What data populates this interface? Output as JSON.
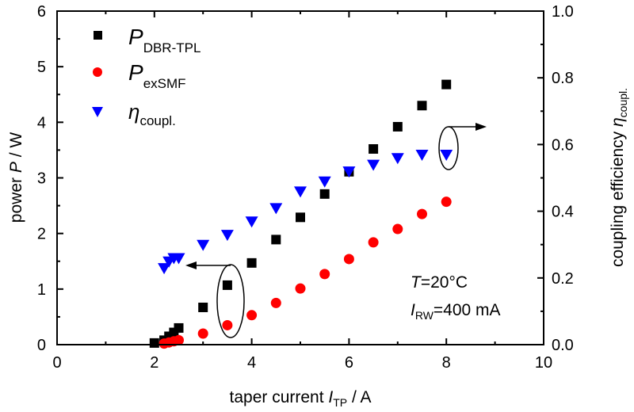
{
  "chart_data": {
    "type": "scatter",
    "xlabel": {
      "text": "taper current ",
      "italic": "I",
      "sub": "TP",
      "unit": " / A"
    },
    "ylabel": {
      "text": "power ",
      "italic": "P",
      "unit": " / W"
    },
    "y2label": {
      "text": "coupling efficiency ",
      "italic": "η",
      "sub": "coupl."
    },
    "xlim": [
      0,
      10
    ],
    "ylim": [
      0,
      6
    ],
    "y2lim": [
      0,
      1.0
    ],
    "xticks": [
      "0",
      "2",
      "4",
      "6",
      "8",
      "10"
    ],
    "yticks": [
      "0",
      "1",
      "2",
      "3",
      "4",
      "5",
      "6"
    ],
    "y2ticks": [
      "0.0",
      "0.2",
      "0.4",
      "0.6",
      "0.8",
      "1.0"
    ],
    "grid": false,
    "legend_placement": "top-left",
    "series": [
      {
        "name": "P",
        "sub": "DBR-TPL",
        "marker": "square",
        "color": "#000000",
        "axis": "left",
        "x": [
          2.0,
          2.2,
          2.3,
          2.4,
          2.5,
          3.0,
          3.5,
          4.0,
          4.5,
          5.0,
          5.5,
          6.0,
          6.5,
          7.0,
          7.5,
          8.0
        ],
        "y": [
          0.03,
          0.08,
          0.15,
          0.22,
          0.3,
          0.67,
          1.07,
          1.47,
          1.89,
          2.29,
          2.71,
          3.11,
          3.52,
          3.92,
          4.3,
          4.68
        ]
      },
      {
        "name": "P",
        "sub": "exSMF",
        "marker": "circle",
        "color": "#ff0000",
        "axis": "left",
        "x": [
          2.2,
          2.3,
          2.4,
          2.5,
          3.0,
          3.5,
          4.0,
          4.5,
          5.0,
          5.5,
          6.0,
          6.5,
          7.0,
          7.5,
          8.0
        ],
        "y": [
          0.02,
          0.04,
          0.06,
          0.08,
          0.2,
          0.35,
          0.53,
          0.75,
          1.01,
          1.27,
          1.54,
          1.84,
          2.08,
          2.35,
          2.57
        ]
      },
      {
        "name": "η",
        "sub": "coupl.",
        "marker": "triangle-down",
        "color": "#0000ff",
        "axis": "right",
        "x": [
          2.2,
          2.3,
          2.4,
          2.5,
          3.0,
          3.5,
          4.0,
          4.5,
          5.0,
          5.5,
          6.0,
          6.5,
          7.0,
          7.5,
          8.0
        ],
        "y": [
          0.23,
          0.25,
          0.26,
          0.26,
          0.3,
          0.33,
          0.37,
          0.41,
          0.46,
          0.49,
          0.52,
          0.54,
          0.56,
          0.57,
          0.57
        ]
      }
    ],
    "annotations": [
      {
        "italic": "T",
        "text": "=20°C"
      },
      {
        "italic": "I",
        "sub": "RW",
        "text": "=400 mA"
      }
    ]
  }
}
